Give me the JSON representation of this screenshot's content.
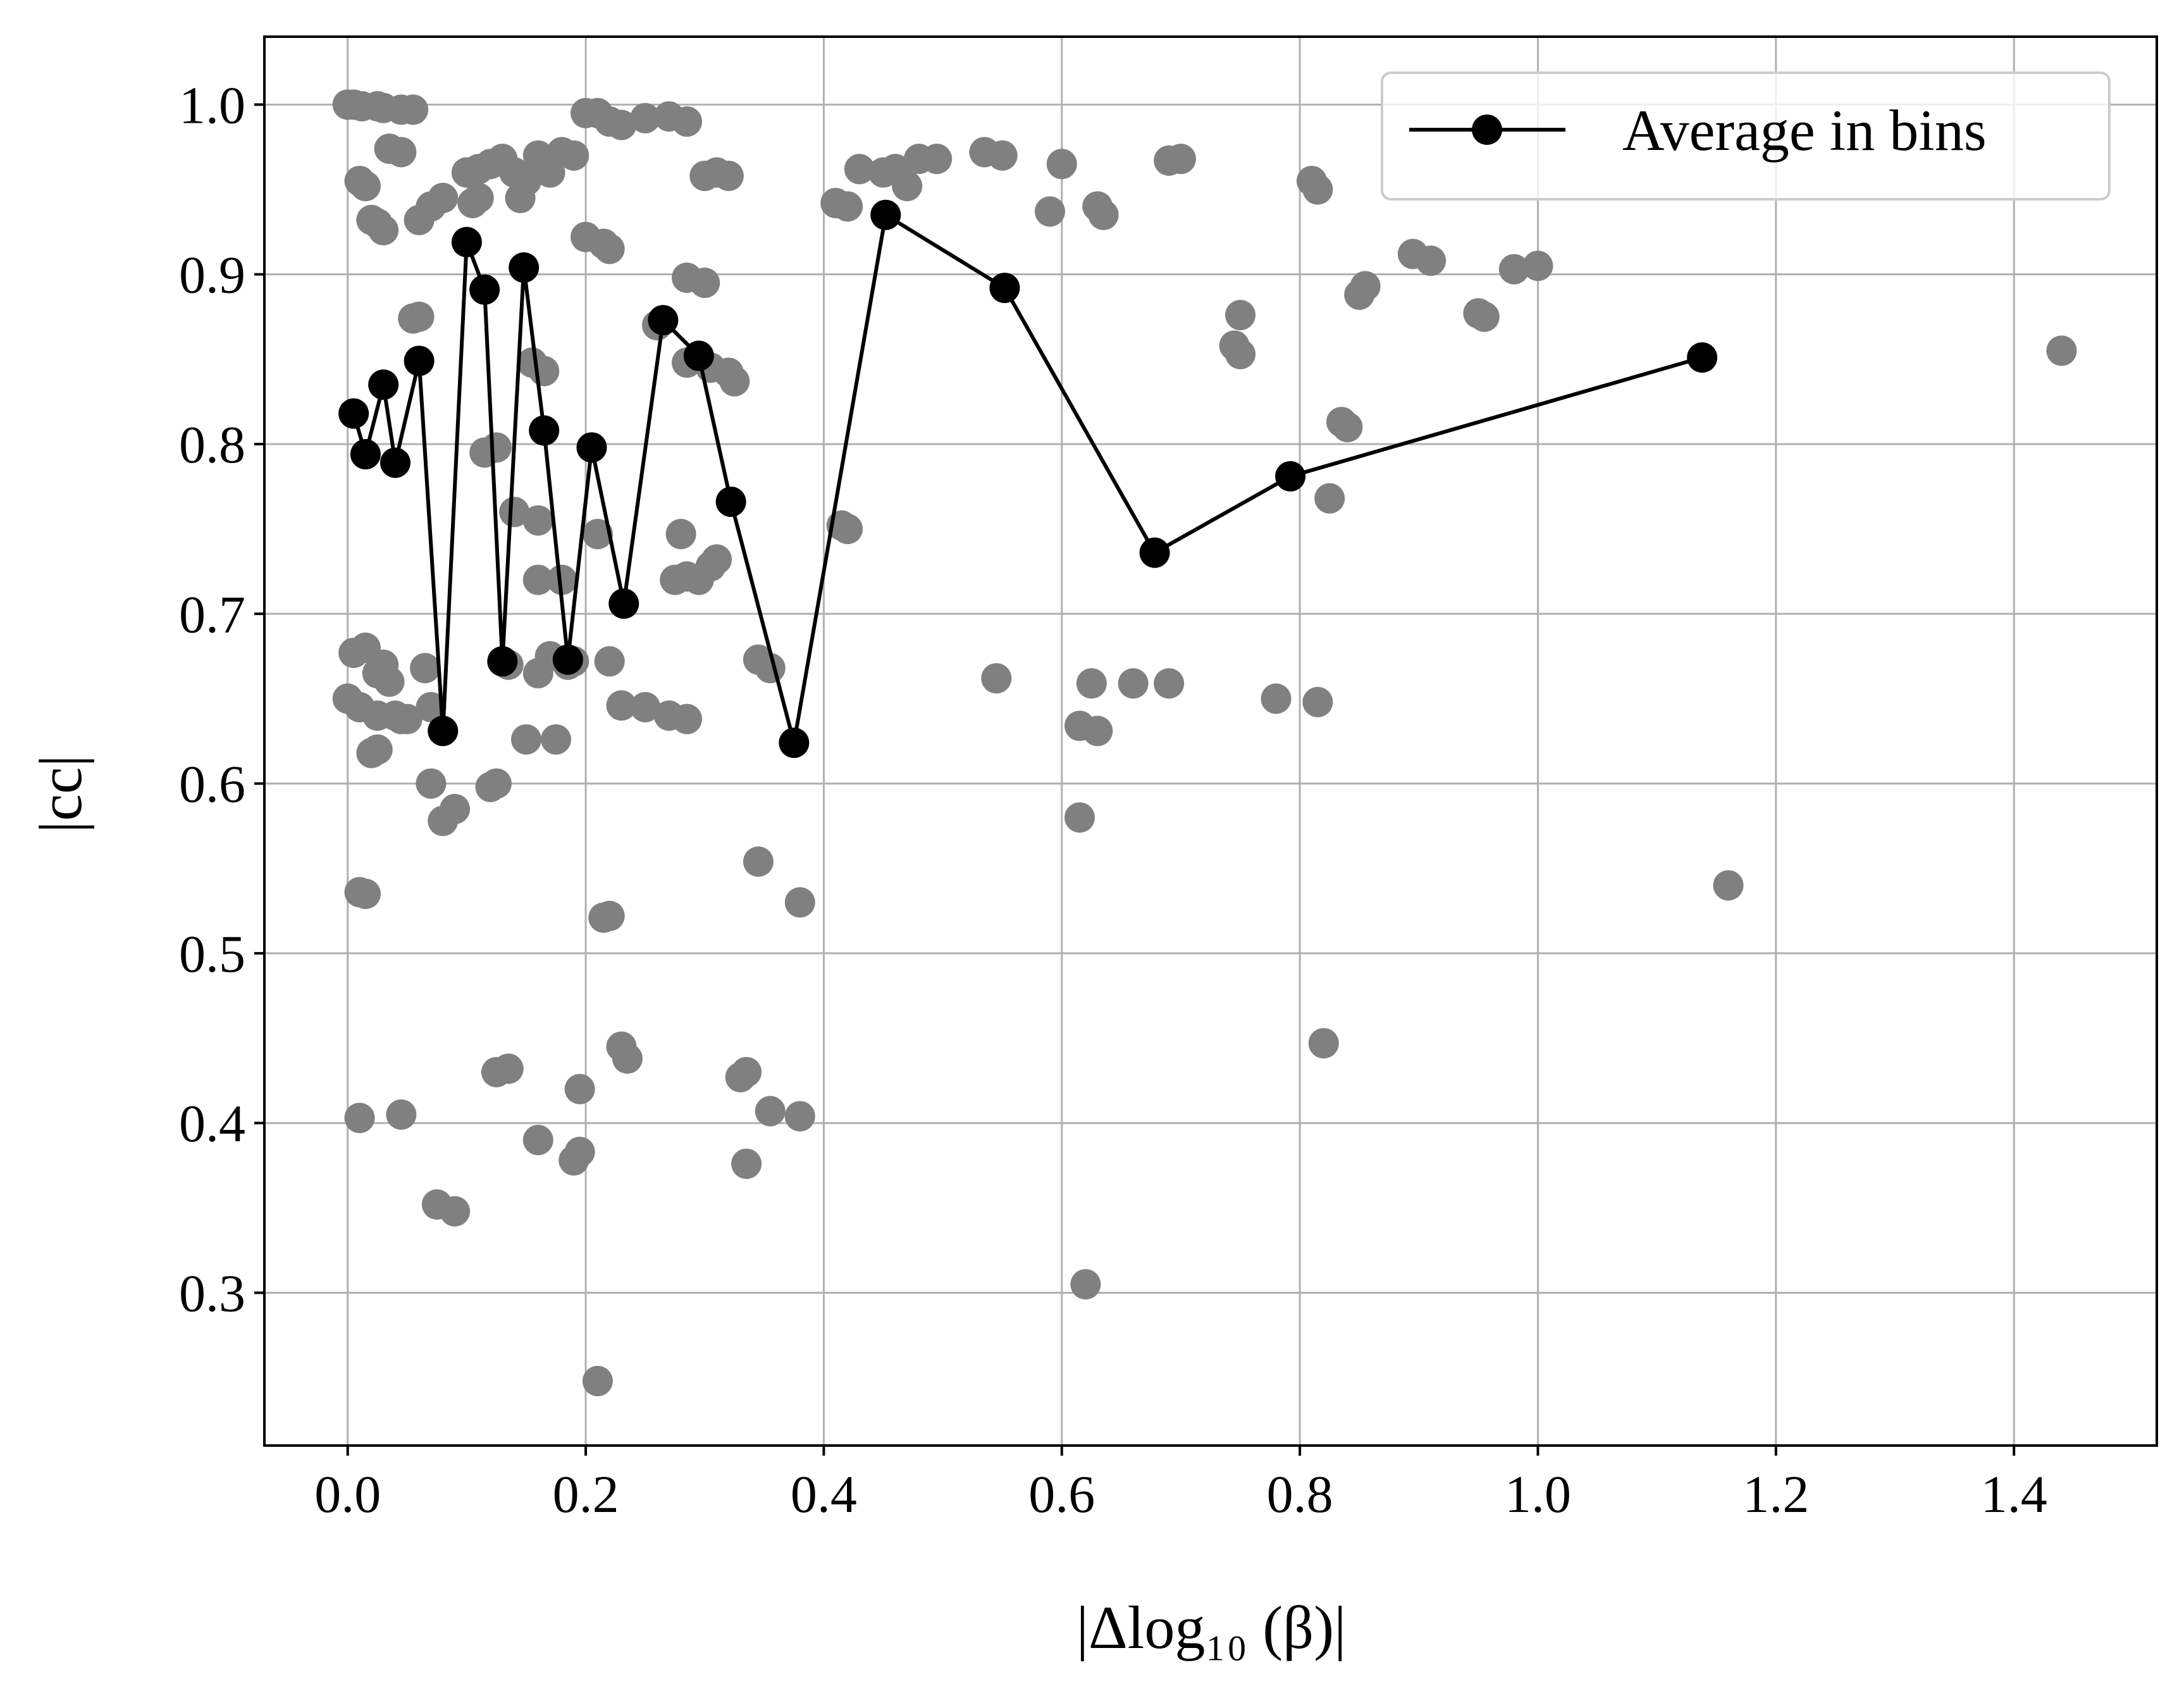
{
  "chart_data": {
    "type": "scatter",
    "title": "",
    "xlabel": "|Δlog₁₀ (β)|",
    "ylabel": "|cc|",
    "xlim": [
      -0.07,
      1.52
    ],
    "ylim": [
      0.21,
      1.04
    ],
    "xticks": [
      0.0,
      0.2,
      0.4,
      0.6,
      0.8,
      1.0,
      1.2,
      1.4
    ],
    "xtick_labels": [
      "0.0",
      "0.2",
      "0.4",
      "0.6",
      "0.8",
      "1.0",
      "1.2",
      "1.4"
    ],
    "yticks": [
      0.3,
      0.4,
      0.5,
      0.6,
      0.7,
      0.8,
      0.9,
      1.0
    ],
    "ytick_labels": [
      "0.3",
      "0.4",
      "0.5",
      "0.6",
      "0.7",
      "0.8",
      "0.9",
      "1.0"
    ],
    "grid": true,
    "legend_position": "top-right",
    "colors": {
      "scatter": "#808080",
      "average": "#000000",
      "grid": "#b0b0b0"
    },
    "series": [
      {
        "role": "scatter",
        "points": [
          [
            0.0,
            1.0
          ],
          [
            0.005,
            1.0
          ],
          [
            0.012,
            0.999
          ],
          [
            0.025,
            0.999
          ],
          [
            0.03,
            0.998
          ],
          [
            0.045,
            0.997
          ],
          [
            0.055,
            0.997
          ],
          [
            0.01,
            0.955
          ],
          [
            0.015,
            0.952
          ],
          [
            0.035,
            0.974
          ],
          [
            0.045,
            0.972
          ],
          [
            0.02,
            0.932
          ],
          [
            0.03,
            0.926
          ],
          [
            0.025,
            0.93
          ],
          [
            0.06,
            0.932
          ],
          [
            0.07,
            0.94
          ],
          [
            0.08,
            0.945
          ],
          [
            0.1,
            0.96
          ],
          [
            0.11,
            0.962
          ],
          [
            0.12,
            0.965
          ],
          [
            0.13,
            0.968
          ],
          [
            0.14,
            0.96
          ],
          [
            0.15,
            0.955
          ],
          [
            0.16,
            0.97
          ],
          [
            0.17,
            0.96
          ],
          [
            0.18,
            0.972
          ],
          [
            0.19,
            0.97
          ],
          [
            0.105,
            0.942
          ],
          [
            0.11,
            0.945
          ],
          [
            0.145,
            0.945
          ],
          [
            0.2,
            0.995
          ],
          [
            0.21,
            0.995
          ],
          [
            0.22,
            0.99
          ],
          [
            0.23,
            0.988
          ],
          [
            0.25,
            0.992
          ],
          [
            0.27,
            0.993
          ],
          [
            0.285,
            0.99
          ],
          [
            0.2,
            0.922
          ],
          [
            0.215,
            0.918
          ],
          [
            0.22,
            0.915
          ],
          [
            0.3,
            0.958
          ],
          [
            0.31,
            0.96
          ],
          [
            0.32,
            0.958
          ],
          [
            0.285,
            0.898
          ],
          [
            0.3,
            0.895
          ],
          [
            0.43,
            0.962
          ],
          [
            0.45,
            0.96
          ],
          [
            0.46,
            0.962
          ],
          [
            0.47,
            0.952
          ],
          [
            0.48,
            0.968
          ],
          [
            0.495,
            0.968
          ],
          [
            0.41,
            0.942
          ],
          [
            0.42,
            0.94
          ],
          [
            0.535,
            0.972
          ],
          [
            0.55,
            0.97
          ],
          [
            0.6,
            0.965
          ],
          [
            0.59,
            0.937
          ],
          [
            0.63,
            0.94
          ],
          [
            0.635,
            0.935
          ],
          [
            0.69,
            0.967
          ],
          [
            0.7,
            0.968
          ],
          [
            0.81,
            0.955
          ],
          [
            0.815,
            0.95
          ],
          [
            0.895,
            0.912
          ],
          [
            0.91,
            0.908
          ],
          [
            0.95,
            0.877
          ],
          [
            0.955,
            0.875
          ],
          [
            0.98,
            0.903
          ],
          [
            1.0,
            0.905
          ],
          [
            0.75,
            0.876
          ],
          [
            0.745,
            0.858
          ],
          [
            0.75,
            0.853
          ],
          [
            0.85,
            0.888
          ],
          [
            0.855,
            0.893
          ],
          [
            0.835,
            0.813
          ],
          [
            0.84,
            0.81
          ],
          [
            0.825,
            0.768
          ],
          [
            1.44,
            0.855
          ],
          [
            0.055,
            0.874
          ],
          [
            0.06,
            0.875
          ],
          [
            0.155,
            0.848
          ],
          [
            0.165,
            0.843
          ],
          [
            0.115,
            0.795
          ],
          [
            0.125,
            0.798
          ],
          [
            0.26,
            0.87
          ],
          [
            0.285,
            0.848
          ],
          [
            0.305,
            0.845
          ],
          [
            0.32,
            0.842
          ],
          [
            0.325,
            0.837
          ],
          [
            0.14,
            0.76
          ],
          [
            0.16,
            0.755
          ],
          [
            0.21,
            0.747
          ],
          [
            0.16,
            0.72
          ],
          [
            0.18,
            0.72
          ],
          [
            0.285,
            0.722
          ],
          [
            0.295,
            0.72
          ],
          [
            0.305,
            0.728
          ],
          [
            0.31,
            0.732
          ],
          [
            0.42,
            0.75
          ],
          [
            0.415,
            0.752
          ],
          [
            0.28,
            0.747
          ],
          [
            0.275,
            0.72
          ],
          [
            0.005,
            0.677
          ],
          [
            0.015,
            0.68
          ],
          [
            0.025,
            0.665
          ],
          [
            0.03,
            0.67
          ],
          [
            0.035,
            0.66
          ],
          [
            0.01,
            0.645
          ],
          [
            0.025,
            0.64
          ],
          [
            0.04,
            0.64
          ],
          [
            0.05,
            0.638
          ],
          [
            0.065,
            0.668
          ],
          [
            0.07,
            0.645
          ],
          [
            0.045,
            0.638
          ],
          [
            0.0,
            0.65
          ],
          [
            0.02,
            0.618
          ],
          [
            0.025,
            0.62
          ],
          [
            0.135,
            0.67
          ],
          [
            0.16,
            0.665
          ],
          [
            0.17,
            0.675
          ],
          [
            0.185,
            0.67
          ],
          [
            0.19,
            0.672
          ],
          [
            0.22,
            0.672
          ],
          [
            0.23,
            0.646
          ],
          [
            0.25,
            0.645
          ],
          [
            0.27,
            0.64
          ],
          [
            0.285,
            0.638
          ],
          [
            0.15,
            0.626
          ],
          [
            0.175,
            0.626
          ],
          [
            0.07,
            0.6
          ],
          [
            0.12,
            0.598
          ],
          [
            0.125,
            0.6
          ],
          [
            0.08,
            0.578
          ],
          [
            0.09,
            0.585
          ],
          [
            0.345,
            0.673
          ],
          [
            0.355,
            0.668
          ],
          [
            0.545,
            0.662
          ],
          [
            0.625,
            0.659
          ],
          [
            0.66,
            0.659
          ],
          [
            0.69,
            0.659
          ],
          [
            0.615,
            0.634
          ],
          [
            0.63,
            0.631
          ],
          [
            0.78,
            0.65
          ],
          [
            0.815,
            0.648
          ],
          [
            0.615,
            0.58
          ],
          [
            0.345,
            0.554
          ],
          [
            0.38,
            0.53
          ],
          [
            1.16,
            0.54
          ],
          [
            0.01,
            0.536
          ],
          [
            0.015,
            0.535
          ],
          [
            0.215,
            0.521
          ],
          [
            0.22,
            0.522
          ],
          [
            0.23,
            0.445
          ],
          [
            0.235,
            0.438
          ],
          [
            0.125,
            0.43
          ],
          [
            0.135,
            0.432
          ],
          [
            0.33,
            0.427
          ],
          [
            0.335,
            0.43
          ],
          [
            0.82,
            0.447
          ],
          [
            0.195,
            0.42
          ],
          [
            0.355,
            0.407
          ],
          [
            0.38,
            0.404
          ],
          [
            0.01,
            0.403
          ],
          [
            0.045,
            0.405
          ],
          [
            0.16,
            0.39
          ],
          [
            0.19,
            0.378
          ],
          [
            0.195,
            0.383
          ],
          [
            0.335,
            0.376
          ],
          [
            0.075,
            0.352
          ],
          [
            0.09,
            0.348
          ],
          [
            0.62,
            0.305
          ],
          [
            0.21,
            0.248
          ]
        ]
      },
      {
        "role": "average",
        "name": "Average in bins",
        "points": [
          [
            0.005,
            0.818
          ],
          [
            0.015,
            0.794
          ],
          [
            0.03,
            0.835
          ],
          [
            0.04,
            0.789
          ],
          [
            0.06,
            0.849
          ],
          [
            0.08,
            0.631
          ],
          [
            0.1,
            0.919
          ],
          [
            0.115,
            0.891
          ],
          [
            0.13,
            0.672
          ],
          [
            0.148,
            0.904
          ],
          [
            0.165,
            0.808
          ],
          [
            0.185,
            0.673
          ],
          [
            0.205,
            0.798
          ],
          [
            0.232,
            0.706
          ],
          [
            0.265,
            0.873
          ],
          [
            0.295,
            0.852
          ],
          [
            0.322,
            0.766
          ],
          [
            0.375,
            0.624
          ],
          [
            0.452,
            0.935
          ],
          [
            0.552,
            0.892
          ],
          [
            0.678,
            0.736
          ],
          [
            0.792,
            0.781
          ],
          [
            1.138,
            0.851
          ]
        ]
      }
    ]
  }
}
